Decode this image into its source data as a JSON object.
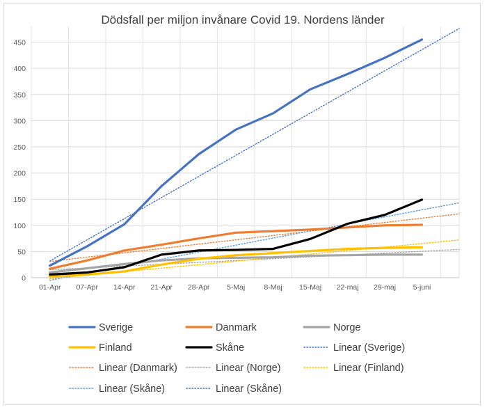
{
  "chart_data": {
    "type": "line",
    "title": "Dödsfall per miljon invånare Covid 19. Nordens länder",
    "xlabel": "",
    "ylabel": "",
    "categories": [
      "01-Apr",
      "07-Apr",
      "14-Apr",
      "21-Apr",
      "28-Apr",
      "5-Maj",
      "8-Maj",
      "15-Maj",
      "22-maj",
      "29-maj",
      "5-juni"
    ],
    "yticks": [
      "0",
      "50",
      "100",
      "150",
      "200",
      "250",
      "300",
      "350",
      "400",
      "450"
    ],
    "ylim": [
      0,
      480
    ],
    "grid": true,
    "legend_position": "bottom",
    "series": [
      {
        "name": "Sverige",
        "color": "#4472c4",
        "values": [
          23,
          60,
          102,
          175,
          236,
          283,
          314,
          360,
          389,
          420,
          455
        ]
      },
      {
        "name": "Danmark",
        "color": "#ed7d31",
        "values": [
          17,
          33,
          52,
          63,
          75,
          86,
          89,
          92,
          96,
          100,
          101
        ]
      },
      {
        "name": "Norge",
        "color": "#a5a5a5",
        "values": [
          10,
          18,
          26,
          33,
          37,
          38,
          39,
          42,
          43,
          44,
          44
        ]
      },
      {
        "name": "Finland",
        "color": "#ffc000",
        "values": [
          2,
          6,
          12,
          25,
          36,
          43,
          47,
          51,
          55,
          57,
          58
        ]
      },
      {
        "name": "Skåne",
        "color": "#000000",
        "values": [
          6,
          10,
          20,
          44,
          52,
          53,
          55,
          74,
          103,
          120,
          149
        ]
      }
    ],
    "trendlines": [
      {
        "name": "Linear (Sverige)",
        "color": "#4472c4",
        "start": 32,
        "end": 476
      },
      {
        "name": "Linear (Danmark)",
        "color": "#ed7d31",
        "start": 31,
        "end": 122
      },
      {
        "name": "Linear (Norge)",
        "color": "#a5a5a5",
        "start": 15,
        "end": 54
      },
      {
        "name": "Linear (Finland)",
        "color": "#ffc000",
        "start": -2,
        "end": 72
      },
      {
        "name": "Linear (Skåne)",
        "color": "#5b9bd5",
        "start": -5,
        "end": 143
      }
    ],
    "legend": [
      {
        "label": "Sverige",
        "color": "#4472c4",
        "style": "solid"
      },
      {
        "label": "Danmark",
        "color": "#ed7d31",
        "style": "solid"
      },
      {
        "label": "Norge",
        "color": "#a5a5a5",
        "style": "solid"
      },
      {
        "label": "Finland",
        "color": "#ffc000",
        "style": "solid"
      },
      {
        "label": "Skåne",
        "color": "#000000",
        "style": "solid"
      },
      {
        "label": "Linear (Sverige)",
        "color": "#4472c4",
        "style": "dotted"
      },
      {
        "label": "Linear (Danmark)",
        "color": "#ed7d31",
        "style": "dotted"
      },
      {
        "label": "Linear (Norge)",
        "color": "#a5a5a5",
        "style": "dotted"
      },
      {
        "label": "Linear (Finland)",
        "color": "#ffc000",
        "style": "dotted"
      },
      {
        "label": "Linear (Skåne)",
        "color": "#5b9bd5",
        "style": "dotted"
      },
      {
        "label": "Linear (Skåne)",
        "color": "#4472c4",
        "style": "dotted"
      }
    ]
  }
}
